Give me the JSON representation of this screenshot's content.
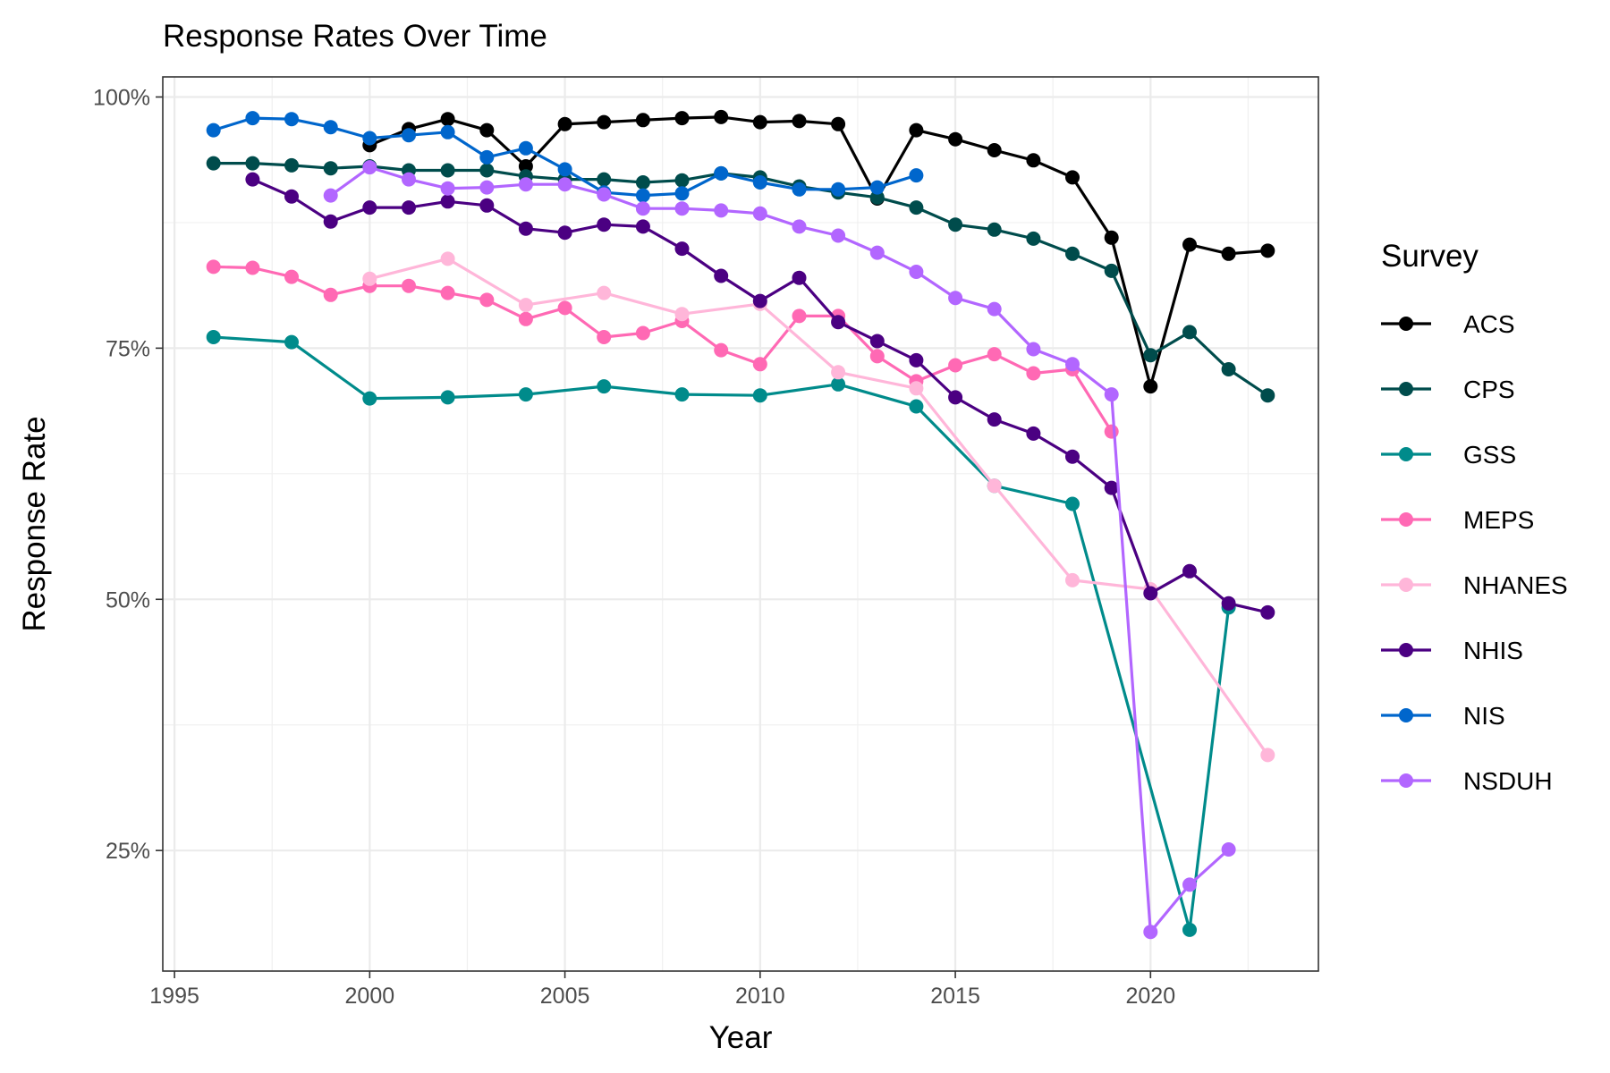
{
  "chart_data": {
    "type": "line",
    "title": "Response Rates Over Time",
    "xlabel": "Year",
    "ylabel": "Response Rate",
    "xlim": [
      1994.7,
      2024.3
    ],
    "ylim": [
      13.0,
      102.0
    ],
    "x_ticks": [
      1995,
      2000,
      2005,
      2010,
      2015,
      2020
    ],
    "x_tick_labels": [
      "1995",
      "2000",
      "2005",
      "2010",
      "2015",
      "2020"
    ],
    "y_ticks": [
      25,
      50,
      75,
      100
    ],
    "y_tick_labels": [
      "25%",
      "50%",
      "75%",
      "100%"
    ],
    "grid": true,
    "legend": {
      "title": "Survey",
      "position": "right"
    },
    "series": [
      {
        "name": "ACS",
        "color": "#000000",
        "points": [
          [
            2000,
            95.2
          ],
          [
            2001,
            96.8
          ],
          [
            2002,
            97.8
          ],
          [
            2003,
            96.7
          ],
          [
            2004,
            93.1
          ],
          [
            2005,
            97.3
          ],
          [
            2006,
            97.5
          ],
          [
            2007,
            97.7
          ],
          [
            2008,
            97.9
          ],
          [
            2009,
            98.0
          ],
          [
            2010,
            97.5
          ],
          [
            2011,
            97.6
          ],
          [
            2012,
            97.3
          ],
          [
            2013,
            89.9
          ],
          [
            2014,
            96.7
          ],
          [
            2015,
            95.8
          ],
          [
            2016,
            94.7
          ],
          [
            2017,
            93.7
          ],
          [
            2018,
            92.0
          ],
          [
            2019,
            86.0
          ],
          [
            2020,
            71.2
          ],
          [
            2021,
            85.3
          ],
          [
            2022,
            84.4
          ],
          [
            2023,
            84.7
          ]
        ]
      },
      {
        "name": "CPS",
        "color": "#004c4c",
        "points": [
          [
            1996,
            93.4
          ],
          [
            1997,
            93.4
          ],
          [
            1998,
            93.2
          ],
          [
            1999,
            92.9
          ],
          [
            2000,
            93.1
          ],
          [
            2001,
            92.7
          ],
          [
            2002,
            92.7
          ],
          [
            2003,
            92.7
          ],
          [
            2004,
            92.1
          ],
          [
            2005,
            91.8
          ],
          [
            2006,
            91.8
          ],
          [
            2007,
            91.5
          ],
          [
            2008,
            91.7
          ],
          [
            2009,
            92.4
          ],
          [
            2010,
            92.0
          ],
          [
            2011,
            91.1
          ],
          [
            2012,
            90.5
          ],
          [
            2013,
            90.0
          ],
          [
            2014,
            89.0
          ],
          [
            2015,
            87.3
          ],
          [
            2016,
            86.8
          ],
          [
            2017,
            85.9
          ],
          [
            2018,
            84.4
          ],
          [
            2019,
            82.7
          ],
          [
            2020,
            74.3
          ],
          [
            2021,
            76.6
          ],
          [
            2022,
            72.9
          ],
          [
            2023,
            70.3
          ]
        ]
      },
      {
        "name": "GSS",
        "color": "#008b8b",
        "points": [
          [
            1996,
            76.1
          ],
          [
            1998,
            75.6
          ],
          [
            2000,
            70.0
          ],
          [
            2002,
            70.1
          ],
          [
            2004,
            70.4
          ],
          [
            2006,
            71.2
          ],
          [
            2008,
            70.4
          ],
          [
            2010,
            70.3
          ],
          [
            2012,
            71.4
          ],
          [
            2014,
            69.2
          ],
          [
            2016,
            61.3
          ],
          [
            2018,
            59.5
          ],
          [
            2021,
            17.1
          ],
          [
            2022,
            49.2
          ]
        ]
      },
      {
        "name": "MEPS",
        "color": "#ff69b4",
        "points": [
          [
            1996,
            83.1
          ],
          [
            1997,
            83.0
          ],
          [
            1998,
            82.1
          ],
          [
            1999,
            80.3
          ],
          [
            2000,
            81.2
          ],
          [
            2001,
            81.2
          ],
          [
            2002,
            80.5
          ],
          [
            2003,
            79.8
          ],
          [
            2004,
            77.9
          ],
          [
            2005,
            79.0
          ],
          [
            2006,
            76.1
          ],
          [
            2007,
            76.5
          ],
          [
            2008,
            77.7
          ],
          [
            2009,
            74.8
          ],
          [
            2010,
            73.4
          ],
          [
            2011,
            78.2
          ],
          [
            2012,
            78.2
          ],
          [
            2013,
            74.2
          ],
          [
            2014,
            71.7
          ],
          [
            2015,
            73.3
          ],
          [
            2016,
            74.4
          ],
          [
            2017,
            72.5
          ],
          [
            2018,
            72.9
          ],
          [
            2019,
            66.7
          ]
        ]
      },
      {
        "name": "NHANES",
        "color": "#ffb6d9",
        "points": [
          [
            2000,
            81.9
          ],
          [
            2002,
            83.9
          ],
          [
            2004,
            79.3
          ],
          [
            2006,
            80.5
          ],
          [
            2008,
            78.4
          ],
          [
            2010,
            79.4
          ],
          [
            2012,
            72.6
          ],
          [
            2014,
            71.0
          ],
          [
            2016,
            61.3
          ],
          [
            2018,
            51.9
          ],
          [
            2020,
            51.0
          ],
          [
            2023,
            34.5
          ]
        ]
      },
      {
        "name": "NHIS",
        "color": "#4b0082",
        "points": [
          [
            1997,
            91.8
          ],
          [
            1998,
            90.1
          ],
          [
            1999,
            87.6
          ],
          [
            2000,
            89.0
          ],
          [
            2001,
            89.0
          ],
          [
            2002,
            89.6
          ],
          [
            2003,
            89.2
          ],
          [
            2004,
            86.9
          ],
          [
            2005,
            86.5
          ],
          [
            2006,
            87.3
          ],
          [
            2007,
            87.1
          ],
          [
            2008,
            84.9
          ],
          [
            2009,
            82.2
          ],
          [
            2010,
            79.7
          ],
          [
            2011,
            82.0
          ],
          [
            2012,
            77.6
          ],
          [
            2013,
            75.7
          ],
          [
            2014,
            73.8
          ],
          [
            2015,
            70.1
          ],
          [
            2016,
            67.9
          ],
          [
            2017,
            66.5
          ],
          [
            2018,
            64.2
          ],
          [
            2019,
            61.1
          ],
          [
            2020,
            50.6
          ],
          [
            2021,
            52.8
          ],
          [
            2022,
            49.6
          ],
          [
            2023,
            48.7
          ]
        ]
      },
      {
        "name": "NIS",
        "color": "#0066cc",
        "points": [
          [
            1996,
            96.7
          ],
          [
            1997,
            97.9
          ],
          [
            1998,
            97.8
          ],
          [
            1999,
            97.0
          ],
          [
            2000,
            95.9
          ],
          [
            2001,
            96.2
          ],
          [
            2002,
            96.5
          ],
          [
            2003,
            94.0
          ],
          [
            2004,
            94.9
          ],
          [
            2005,
            92.8
          ],
          [
            2006,
            90.5
          ],
          [
            2007,
            90.2
          ],
          [
            2008,
            90.4
          ],
          [
            2009,
            92.4
          ],
          [
            2010,
            91.5
          ],
          [
            2011,
            90.8
          ],
          [
            2012,
            90.8
          ],
          [
            2013,
            91.0
          ],
          [
            2014,
            92.2
          ]
        ]
      },
      {
        "name": "NSDUH",
        "color": "#b266ff",
        "points": [
          [
            1999,
            90.2
          ],
          [
            2000,
            93.0
          ],
          [
            2001,
            91.8
          ],
          [
            2002,
            90.9
          ],
          [
            2003,
            91.0
          ],
          [
            2004,
            91.3
          ],
          [
            2005,
            91.3
          ],
          [
            2006,
            90.3
          ],
          [
            2007,
            88.9
          ],
          [
            2008,
            88.9
          ],
          [
            2009,
            88.7
          ],
          [
            2010,
            88.4
          ],
          [
            2011,
            87.1
          ],
          [
            2012,
            86.2
          ],
          [
            2013,
            84.5
          ],
          [
            2014,
            82.6
          ],
          [
            2015,
            80.0
          ],
          [
            2016,
            78.9
          ],
          [
            2017,
            74.9
          ],
          [
            2018,
            73.4
          ],
          [
            2019,
            70.4
          ],
          [
            2020,
            16.9
          ],
          [
            2021,
            21.6
          ],
          [
            2022,
            25.1
          ]
        ]
      }
    ]
  }
}
